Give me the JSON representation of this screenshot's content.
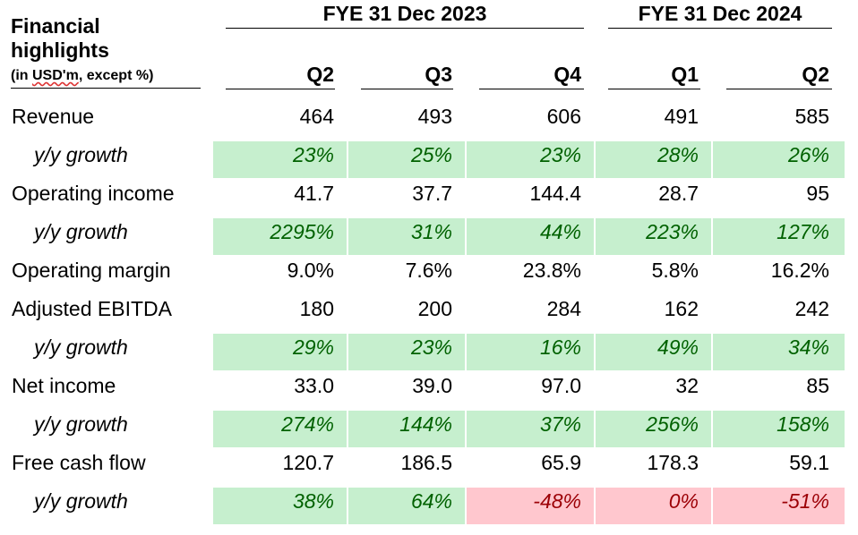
{
  "title": "Financial highlights",
  "subtitle": "(in USD'm, except %)",
  "periods": [
    {
      "label": "FYE 31 Dec 2023",
      "quarters": [
        "Q2",
        "Q3",
        "Q4"
      ]
    },
    {
      "label": "FYE 31 Dec 2024",
      "quarters": [
        "Q1",
        "Q2"
      ]
    }
  ],
  "rows": [
    {
      "label": "Revenue",
      "type": "value",
      "values": [
        "464",
        "493",
        "606",
        "491",
        "585"
      ]
    },
    {
      "label": "y/y growth",
      "type": "growth",
      "values": [
        "23%",
        "25%",
        "23%",
        "28%",
        "26%"
      ]
    },
    {
      "label": "Operating income",
      "type": "value",
      "values": [
        "41.7",
        "37.7",
        "144.4",
        "28.7",
        "95"
      ]
    },
    {
      "label": "y/y growth",
      "type": "growth",
      "values": [
        "2295%",
        "31%",
        "44%",
        "223%",
        "127%"
      ]
    },
    {
      "label": "Operating margin",
      "type": "value",
      "values": [
        "9.0%",
        "7.6%",
        "23.8%",
        "5.8%",
        "16.2%"
      ]
    },
    {
      "label": "Adjusted EBITDA",
      "type": "value",
      "values": [
        "180",
        "200",
        "284",
        "162",
        "242"
      ]
    },
    {
      "label": "y/y growth",
      "type": "growth",
      "values": [
        "29%",
        "23%",
        "16%",
        "49%",
        "34%"
      ]
    },
    {
      "label": "Net income",
      "type": "value",
      "values": [
        "33.0",
        "39.0",
        "97.0",
        "32",
        "85"
      ]
    },
    {
      "label": "y/y growth",
      "type": "growth",
      "values": [
        "274%",
        "144%",
        "37%",
        "256%",
        "158%"
      ]
    },
    {
      "label": "Free cash flow",
      "type": "value",
      "values": [
        "120.7",
        "186.5",
        "65.9",
        "178.3",
        "59.1"
      ]
    },
    {
      "label": "y/y growth",
      "type": "growth",
      "values": [
        "38%",
        "64%",
        "-48%",
        "0%",
        "-51%"
      ]
    }
  ],
  "colors": {
    "positive_fill": "#c6efce",
    "positive_text": "#006100",
    "negative_fill": "#ffc7ce",
    "negative_text": "#9c0006"
  }
}
